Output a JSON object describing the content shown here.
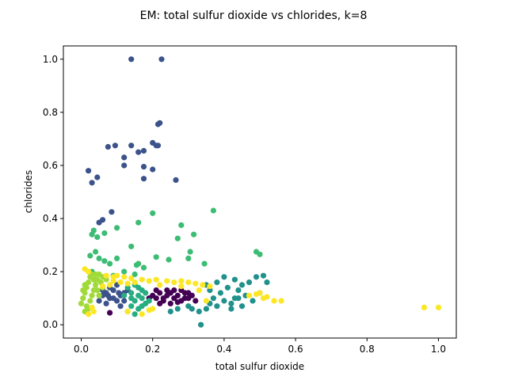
{
  "chart_data": {
    "type": "scatter",
    "title": "EM: total sulfur dioxide vs chlorides, k=8",
    "xlabel": "total sulfur dioxide",
    "ylabel": "chlorides",
    "xlim": [
      -0.05,
      1.05
    ],
    "ylim": [
      -0.05,
      1.05
    ],
    "xticks": [
      0.0,
      0.2,
      0.4,
      0.6,
      0.8,
      1.0
    ],
    "xtick_labels": [
      "0.0",
      "0.2",
      "0.4",
      "0.6",
      "0.8",
      "1.0"
    ],
    "yticks": [
      0.0,
      0.2,
      0.4,
      0.6,
      0.8,
      1.0
    ],
    "ytick_labels": [
      "0.0",
      "0.2",
      "0.4",
      "0.6",
      "0.8",
      "1.0"
    ],
    "grid": false,
    "legend": "none",
    "series": [
      {
        "color": "#440154",
        "points": [
          [
            0.2,
            0.11
          ],
          [
            0.21,
            0.1
          ],
          [
            0.22,
            0.12
          ],
          [
            0.23,
            0.09
          ],
          [
            0.24,
            0.11
          ],
          [
            0.25,
            0.12
          ],
          [
            0.26,
            0.1
          ],
          [
            0.27,
            0.11
          ],
          [
            0.28,
            0.09
          ],
          [
            0.29,
            0.12
          ],
          [
            0.3,
            0.1
          ],
          [
            0.31,
            0.11
          ],
          [
            0.22,
            0.08
          ],
          [
            0.25,
            0.08
          ],
          [
            0.28,
            0.13
          ],
          [
            0.24,
            0.13
          ],
          [
            0.32,
            0.09
          ],
          [
            0.19,
            0.1
          ],
          [
            0.26,
            0.13
          ],
          [
            0.3,
            0.12
          ],
          [
            0.08,
            0.045
          ],
          [
            0.21,
            0.13
          ],
          [
            0.27,
            0.085
          ],
          [
            0.23,
            0.1
          ],
          [
            0.29,
            0.1
          ]
        ]
      },
      {
        "color": "#3b528b",
        "points": [
          [
            0.14,
            1.0
          ],
          [
            0.225,
            1.0
          ],
          [
            0.22,
            0.76
          ],
          [
            0.215,
            0.755
          ],
          [
            0.075,
            0.67
          ],
          [
            0.095,
            0.675
          ],
          [
            0.14,
            0.675
          ],
          [
            0.16,
            0.65
          ],
          [
            0.175,
            0.655
          ],
          [
            0.2,
            0.685
          ],
          [
            0.21,
            0.675
          ],
          [
            0.215,
            0.675
          ],
          [
            0.12,
            0.63
          ],
          [
            0.12,
            0.6
          ],
          [
            0.175,
            0.595
          ],
          [
            0.2,
            0.585
          ],
          [
            0.02,
            0.58
          ],
          [
            0.045,
            0.555
          ],
          [
            0.03,
            0.535
          ],
          [
            0.175,
            0.55
          ],
          [
            0.265,
            0.545
          ],
          [
            0.085,
            0.425
          ],
          [
            0.06,
            0.395
          ],
          [
            0.05,
            0.385
          ],
          [
            0.05,
            0.09
          ],
          [
            0.06,
            0.11
          ],
          [
            0.07,
            0.12
          ],
          [
            0.08,
            0.1
          ],
          [
            0.09,
            0.13
          ],
          [
            0.1,
            0.09
          ],
          [
            0.11,
            0.11
          ],
          [
            0.12,
            0.12
          ],
          [
            0.07,
            0.08
          ],
          [
            0.08,
            0.14
          ],
          [
            0.1,
            0.15
          ],
          [
            0.06,
            0.13
          ],
          [
            0.11,
            0.07
          ],
          [
            0.09,
            0.1
          ],
          [
            0.12,
            0.09
          ],
          [
            0.13,
            0.13
          ],
          [
            0.075,
            0.11
          ],
          [
            0.105,
            0.12
          ]
        ]
      },
      {
        "color": "#21918c",
        "points": [
          [
            0.33,
            0.05
          ],
          [
            0.35,
            0.06
          ],
          [
            0.36,
            0.08
          ],
          [
            0.37,
            0.1
          ],
          [
            0.38,
            0.07
          ],
          [
            0.39,
            0.12
          ],
          [
            0.4,
            0.09
          ],
          [
            0.41,
            0.14
          ],
          [
            0.42,
            0.08
          ],
          [
            0.43,
            0.1
          ],
          [
            0.44,
            0.13
          ],
          [
            0.45,
            0.07
          ],
          [
            0.46,
            0.11
          ],
          [
            0.47,
            0.16
          ],
          [
            0.48,
            0.09
          ],
          [
            0.5,
            0.12
          ],
          [
            0.52,
            0.16
          ],
          [
            0.4,
            0.18
          ],
          [
            0.43,
            0.17
          ],
          [
            0.38,
            0.16
          ],
          [
            0.335,
            0.0
          ],
          [
            0.31,
            0.06
          ],
          [
            0.27,
            0.06
          ],
          [
            0.25,
            0.05
          ],
          [
            0.3,
            0.07
          ],
          [
            0.35,
            0.15
          ],
          [
            0.45,
            0.15
          ],
          [
            0.49,
            0.18
          ],
          [
            0.51,
            0.185
          ],
          [
            0.42,
            0.06
          ],
          [
            0.36,
            0.13
          ],
          [
            0.44,
            0.1
          ]
        ]
      },
      {
        "color": "#27ad81",
        "points": [
          [
            0.13,
            0.05
          ],
          [
            0.14,
            0.07
          ],
          [
            0.15,
            0.09
          ],
          [
            0.16,
            0.11
          ],
          [
            0.17,
            0.13
          ],
          [
            0.18,
            0.08
          ],
          [
            0.14,
            0.12
          ],
          [
            0.15,
            0.15
          ],
          [
            0.16,
            0.06
          ],
          [
            0.17,
            0.1
          ],
          [
            0.13,
            0.14
          ],
          [
            0.18,
            0.12
          ],
          [
            0.15,
            0.04
          ],
          [
            0.14,
            0.1
          ],
          [
            0.16,
            0.14
          ],
          [
            0.17,
            0.07
          ],
          [
            0.19,
            0.09
          ],
          [
            0.12,
            0.11
          ]
        ]
      },
      {
        "color": "#3dbc74",
        "points": [
          [
            0.16,
            0.385
          ],
          [
            0.2,
            0.42
          ],
          [
            0.37,
            0.43
          ],
          [
            0.1,
            0.365
          ],
          [
            0.065,
            0.345
          ],
          [
            0.035,
            0.355
          ],
          [
            0.03,
            0.34
          ],
          [
            0.045,
            0.33
          ],
          [
            0.28,
            0.375
          ],
          [
            0.315,
            0.34
          ],
          [
            0.27,
            0.325
          ],
          [
            0.14,
            0.295
          ],
          [
            0.04,
            0.275
          ],
          [
            0.025,
            0.26
          ],
          [
            0.05,
            0.25
          ],
          [
            0.065,
            0.24
          ],
          [
            0.1,
            0.25
          ],
          [
            0.155,
            0.225
          ],
          [
            0.16,
            0.23
          ],
          [
            0.21,
            0.255
          ],
          [
            0.245,
            0.245
          ],
          [
            0.3,
            0.25
          ],
          [
            0.305,
            0.275
          ],
          [
            0.345,
            0.23
          ],
          [
            0.49,
            0.275
          ],
          [
            0.5,
            0.265
          ],
          [
            0.08,
            0.23
          ],
          [
            0.12,
            0.2
          ],
          [
            0.09,
            0.185
          ],
          [
            0.03,
            0.2
          ],
          [
            0.04,
            0.17
          ],
          [
            0.175,
            0.215
          ],
          [
            0.15,
            0.19
          ]
        ]
      },
      {
        "color": "#a0da39",
        "points": [
          [
            0.0,
            0.08
          ],
          [
            0.005,
            0.1
          ],
          [
            0.01,
            0.12
          ],
          [
            0.015,
            0.14
          ],
          [
            0.02,
            0.16
          ],
          [
            0.025,
            0.18
          ],
          [
            0.03,
            0.19
          ],
          [
            0.035,
            0.17
          ],
          [
            0.04,
            0.15
          ],
          [
            0.045,
            0.13
          ],
          [
            0.05,
            0.11
          ],
          [
            0.02,
            0.06
          ],
          [
            0.025,
            0.09
          ],
          [
            0.03,
            0.11
          ],
          [
            0.035,
            0.13
          ],
          [
            0.04,
            0.19
          ],
          [
            0.045,
            0.17
          ],
          [
            0.01,
            0.05
          ],
          [
            0.015,
            0.07
          ],
          [
            0.06,
            0.18
          ],
          [
            0.055,
            0.16
          ],
          [
            0.06,
            0.14
          ],
          [
            0.005,
            0.13
          ],
          [
            0.01,
            0.15
          ],
          [
            0.05,
            0.19
          ],
          [
            0.07,
            0.17
          ]
        ]
      },
      {
        "color": "#fde725",
        "points": [
          [
            0.01,
            0.21
          ],
          [
            0.02,
            0.2
          ],
          [
            0.07,
            0.185
          ],
          [
            0.09,
            0.18
          ],
          [
            0.1,
            0.185
          ],
          [
            0.12,
            0.18
          ],
          [
            0.14,
            0.175
          ],
          [
            0.17,
            0.17
          ],
          [
            0.19,
            0.165
          ],
          [
            0.21,
            0.17
          ],
          [
            0.24,
            0.165
          ],
          [
            0.26,
            0.16
          ],
          [
            0.28,
            0.165
          ],
          [
            0.3,
            0.16
          ],
          [
            0.32,
            0.155
          ],
          [
            0.34,
            0.15
          ],
          [
            0.36,
            0.145
          ],
          [
            0.06,
            0.145
          ],
          [
            0.08,
            0.15
          ],
          [
            0.09,
            0.165
          ],
          [
            0.11,
            0.16
          ],
          [
            0.13,
            0.155
          ],
          [
            0.15,
            0.16
          ],
          [
            0.03,
            0.065
          ],
          [
            0.02,
            0.04
          ],
          [
            0.035,
            0.05
          ],
          [
            0.13,
            0.05
          ],
          [
            0.19,
            0.055
          ],
          [
            0.2,
            0.06
          ],
          [
            0.17,
            0.04
          ],
          [
            0.47,
            0.11
          ],
          [
            0.49,
            0.115
          ],
          [
            0.5,
            0.12
          ],
          [
            0.51,
            0.1
          ],
          [
            0.52,
            0.105
          ],
          [
            0.54,
            0.09
          ],
          [
            0.56,
            0.09
          ],
          [
            0.96,
            0.065
          ],
          [
            1.0,
            0.065
          ],
          [
            0.35,
            0.09
          ],
          [
            0.33,
            0.13
          ],
          [
            0.28,
            0.145
          ],
          [
            0.22,
            0.15
          ]
        ]
      }
    ]
  }
}
